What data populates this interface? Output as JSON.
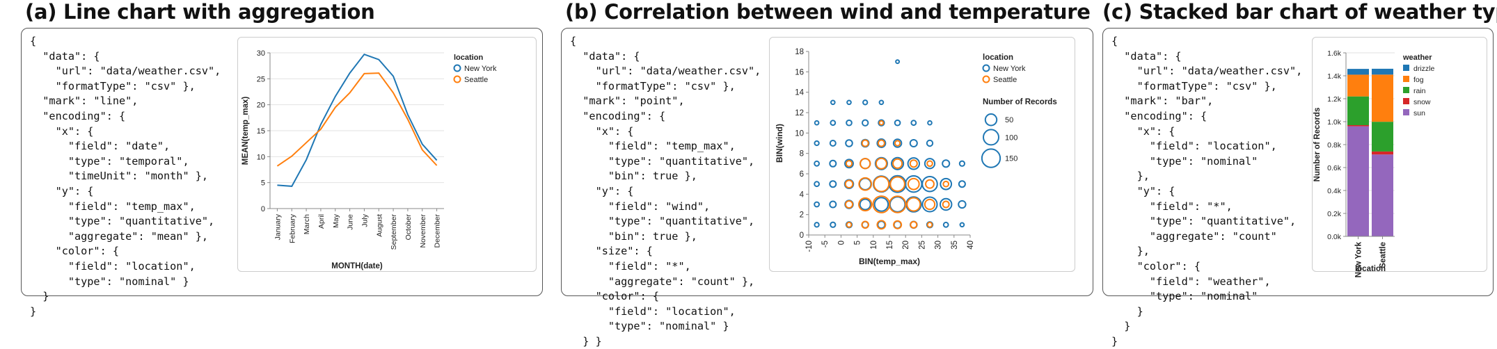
{
  "panels": {
    "a": {
      "title": "(a) Line chart with aggregation",
      "code": "{\n  \"data\": {\n    \"url\": \"data/weather.csv\",\n    \"formatType\": \"csv\" },\n  \"mark\": \"line\",\n  \"encoding\": {\n    \"x\": {\n      \"field\": \"date\",\n      \"type\": \"temporal\",\n      \"timeUnit\": \"month\" },\n    \"y\": {\n      \"field\": \"temp_max\",\n      \"type\": \"quantitative\",\n      \"aggregate\": \"mean\" },\n    \"color\": {\n      \"field\": \"location\",\n      \"type\": \"nominal\" }\n  }\n}"
    },
    "b": {
      "title": "(b) Correlation between wind and temperature",
      "code": "{\n  \"data\": {\n    \"url\": \"data/weather.csv\",\n    \"formatType\": \"csv\" },\n  \"mark\": \"point\",\n  \"encoding\": {\n    \"x\": {\n      \"field\": \"temp_max\",\n      \"type\": \"quantitative\",\n      \"bin\": true },\n    \"y\": {\n      \"field\": \"wind\",\n      \"type\": \"quantitative\",\n      \"bin\": true },\n    \"size\": {\n      \"field\": \"*\",\n      \"aggregate\": \"count\" },\n    \"color\": {\n      \"field\": \"location\",\n      \"type\": \"nominal\" }\n  } }"
    },
    "c": {
      "title": "(c) Stacked bar chart of weather types",
      "code": "{\n  \"data\": {\n    \"url\": \"data/weather.csv\",\n    \"formatType\": \"csv\" },\n  \"mark\": \"bar\",\n  \"encoding\": {\n    \"x\": {\n      \"field\": \"location\",\n      \"type\": \"nominal\"\n    },\n    \"y\": {\n      \"field\": \"*\",\n      \"type\": \"quantitative\",\n      \"aggregate\": \"count\"\n    },\n    \"color\": {\n      \"field\": \"weather\",\n      \"type\": \"nominal\"\n    }\n  }\n}"
    }
  },
  "chart_data": [
    {
      "type": "line",
      "xlabel": "MONTH(date)",
      "ylabel": "MEAN(temp_max)",
      "categories": [
        "January",
        "February",
        "March",
        "April",
        "May",
        "June",
        "July",
        "August",
        "September",
        "October",
        "November",
        "December"
      ],
      "ylim": [
        0,
        30
      ],
      "yticks": [
        0,
        5,
        10,
        15,
        20,
        25,
        30
      ],
      "grid": true,
      "legend_title": "location",
      "legend_position": "top-right",
      "series": [
        {
          "name": "New York",
          "color": "#1f77b4",
          "values": [
            4.5,
            4.3,
            9.4,
            16.2,
            21.6,
            26.1,
            29.7,
            28.7,
            25.5,
            18.1,
            12.4,
            9.3
          ]
        },
        {
          "name": "Seattle",
          "color": "#ff7f0e",
          "values": [
            8.2,
            10.1,
            12.7,
            15.3,
            19.5,
            22.3,
            26.0,
            26.1,
            22.3,
            17.2,
            11.3,
            8.3
          ]
        }
      ]
    },
    {
      "type": "scatter",
      "xlabel": "BIN(temp_max)",
      "ylabel": "BIN(wind)",
      "xlim": [
        -10,
        40
      ],
      "ylim": [
        0,
        18
      ],
      "xticks": [
        -10,
        -5,
        0,
        5,
        10,
        15,
        20,
        25,
        30,
        35,
        40
      ],
      "yticks": [
        0,
        2,
        4,
        6,
        8,
        10,
        12,
        14,
        16,
        18
      ],
      "legend_title": "location",
      "size_legend_title": "Number of Records",
      "size_legend_values": [
        50,
        100,
        150
      ],
      "legend_position": "top-right",
      "series": [
        {
          "name": "New York",
          "color": "#1f77b4",
          "points": [
            [
              -7.5,
              1,
              3
            ],
            [
              -2.5,
              1,
              5
            ],
            [
              2.5,
              1,
              8
            ],
            [
              7.5,
              1,
              10
            ],
            [
              12.5,
              1,
              14
            ],
            [
              17.5,
              1,
              14
            ],
            [
              22.5,
              1,
              12
            ],
            [
              27.5,
              1,
              8
            ],
            [
              32.5,
              1,
              4
            ],
            [
              37.5,
              1,
              2
            ],
            [
              -7.5,
              3,
              4
            ],
            [
              -2.5,
              3,
              10
            ],
            [
              2.5,
              3,
              20
            ],
            [
              7.5,
              3,
              40
            ],
            [
              12.5,
              3,
              75
            ],
            [
              17.5,
              3,
              95
            ],
            [
              22.5,
              3,
              95
            ],
            [
              27.5,
              3,
              90
            ],
            [
              32.5,
              3,
              50
            ],
            [
              37.5,
              3,
              15
            ],
            [
              -7.5,
              5,
              4
            ],
            [
              -2.5,
              5,
              10
            ],
            [
              2.5,
              5,
              25
            ],
            [
              7.5,
              5,
              50
            ],
            [
              12.5,
              5,
              110
            ],
            [
              17.5,
              5,
              120
            ],
            [
              22.5,
              5,
              115
            ],
            [
              27.5,
              5,
              95
            ],
            [
              32.5,
              5,
              45
            ],
            [
              37.5,
              5,
              10
            ],
            [
              -7.5,
              7,
              4
            ],
            [
              -2.5,
              7,
              10
            ],
            [
              2.5,
              7,
              22
            ],
            [
              7.5,
              7,
              35
            ],
            [
              12.5,
              7,
              55
            ],
            [
              17.5,
              7,
              55
            ],
            [
              22.5,
              7,
              50
            ],
            [
              27.5,
              7,
              35
            ],
            [
              32.5,
              7,
              14
            ],
            [
              37.5,
              7,
              5
            ],
            [
              -7.5,
              9,
              3
            ],
            [
              -2.5,
              9,
              7
            ],
            [
              2.5,
              9,
              12
            ],
            [
              7.5,
              9,
              16
            ],
            [
              12.5,
              9,
              22
            ],
            [
              17.5,
              9,
              20
            ],
            [
              22.5,
              9,
              14
            ],
            [
              27.5,
              9,
              8
            ],
            [
              -7.5,
              11,
              2
            ],
            [
              -2.5,
              11,
              4
            ],
            [
              2.5,
              11,
              6
            ],
            [
              7.5,
              11,
              8
            ],
            [
              12.5,
              11,
              8
            ],
            [
              17.5,
              11,
              6
            ],
            [
              22.5,
              11,
              4
            ],
            [
              27.5,
              11,
              2
            ],
            [
              -2.5,
              13,
              2
            ],
            [
              2.5,
              13,
              2
            ],
            [
              7.5,
              13,
              3
            ],
            [
              12.5,
              13,
              2
            ],
            [
              17.5,
              17,
              1
            ]
          ]
        },
        {
          "name": "Seattle",
          "color": "#ff7f0e",
          "points": [
            [
              2.5,
              1,
              4
            ],
            [
              7.5,
              1,
              12
            ],
            [
              12.5,
              1,
              22
            ],
            [
              17.5,
              1,
              18
            ],
            [
              22.5,
              1,
              10
            ],
            [
              27.5,
              1,
              4
            ],
            [
              2.5,
              3,
              14
            ],
            [
              7.5,
              3,
              65
            ],
            [
              12.5,
              3,
              120
            ],
            [
              17.5,
              3,
              115
            ],
            [
              22.5,
              3,
              70
            ],
            [
              27.5,
              3,
              35
            ],
            [
              32.5,
              3,
              10
            ],
            [
              2.5,
              5,
              16
            ],
            [
              7.5,
              5,
              60
            ],
            [
              12.5,
              5,
              95
            ],
            [
              17.5,
              5,
              85
            ],
            [
              22.5,
              5,
              45
            ],
            [
              27.5,
              5,
              22
            ],
            [
              32.5,
              5,
              6
            ],
            [
              2.5,
              7,
              8
            ],
            [
              7.5,
              7,
              35
            ],
            [
              12.5,
              7,
              40
            ],
            [
              17.5,
              7,
              28
            ],
            [
              22.5,
              7,
              14
            ],
            [
              27.5,
              7,
              6
            ],
            [
              7.5,
              9,
              10
            ],
            [
              12.5,
              9,
              10
            ],
            [
              17.5,
              9,
              5
            ],
            [
              12.5,
              11,
              2
            ]
          ]
        }
      ]
    },
    {
      "type": "bar",
      "stacked": true,
      "xlabel": "location",
      "ylabel": "Number of Records",
      "categories": [
        "New York",
        "Seattle"
      ],
      "ylim": [
        0,
        1600
      ],
      "yticks": [
        0,
        200,
        400,
        600,
        800,
        1000,
        1200,
        1400,
        1600
      ],
      "ytick_labels": [
        "0.0k",
        "0.2k",
        "0.4k",
        "0.6k",
        "0.8k",
        "1.0k",
        "1.2k",
        "1.4k",
        "1.6k"
      ],
      "legend_title": "weather",
      "legend_position": "top-right",
      "series": [
        {
          "name": "sun",
          "color": "#9467bd",
          "values": [
            960,
            714
          ]
        },
        {
          "name": "snow",
          "color": "#d62728",
          "values": [
            10,
            26
          ]
        },
        {
          "name": "rain",
          "color": "#2ca02c",
          "values": [
            250,
            259
          ]
        },
        {
          "name": "fog",
          "color": "#ff7f0e",
          "values": [
            190,
            411
          ]
        },
        {
          "name": "drizzle",
          "color": "#1f77b4",
          "values": [
            50,
            51
          ]
        }
      ]
    }
  ]
}
